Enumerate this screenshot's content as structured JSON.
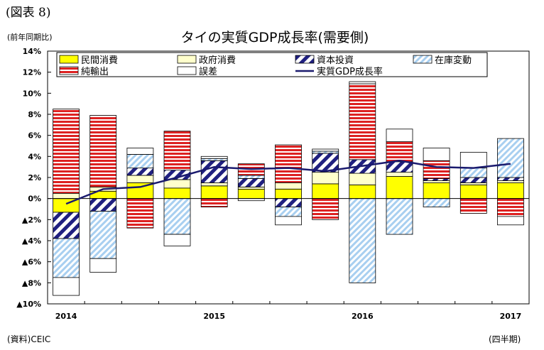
{
  "figure_label": "(図表 8)",
  "unit_label": "(前年同期比)",
  "source": "(資料)CEIC",
  "period_unit": "(四半期)",
  "chart_data": {
    "type": "bar",
    "stacked": true,
    "title": "タイの実質GDP成長率(需要側)",
    "categories": [
      "2014Q1",
      "2014Q2",
      "2014Q3",
      "2014Q4",
      "2015Q1",
      "2015Q2",
      "2015Q3",
      "2015Q4",
      "2016Q1",
      "2016Q2",
      "2016Q3",
      "2016Q4",
      "2017Q1"
    ],
    "x_tick_labels": [
      {
        "category": "2014Q1",
        "label": "2014"
      },
      {
        "category": "2015Q1",
        "label": "2015"
      },
      {
        "category": "2016Q1",
        "label": "2016"
      },
      {
        "category": "2017Q1",
        "label": "2017"
      }
    ],
    "y_ticks": [
      {
        "value": 14,
        "label": "14%"
      },
      {
        "value": 12,
        "label": "12%"
      },
      {
        "value": 10,
        "label": "10%"
      },
      {
        "value": 8,
        "label": "8%"
      },
      {
        "value": 6,
        "label": "6%"
      },
      {
        "value": 4,
        "label": "4%"
      },
      {
        "value": 2,
        "label": "2%"
      },
      {
        "value": 0,
        "label": "0%"
      },
      {
        "value": -2,
        "label": "▲2%"
      },
      {
        "value": -4,
        "label": "▲4%"
      },
      {
        "value": -6,
        "label": "▲6%"
      },
      {
        "value": -8,
        "label": "▲8%"
      },
      {
        "value": -10,
        "label": "▲10%"
      }
    ],
    "ylim": [
      -10,
      14
    ],
    "grid": false,
    "legend_position": "top",
    "series": [
      {
        "name": "民間消費",
        "pattern": "yellow-solid",
        "values": [
          -1.3,
          0.7,
          1.5,
          1.0,
          1.2,
          0.9,
          0.9,
          1.4,
          1.3,
          2.1,
          1.5,
          1.3,
          1.5
        ]
      },
      {
        "name": "政府消費",
        "pattern": "cream-solid",
        "values": [
          0.5,
          0.4,
          0.7,
          0.8,
          0.3,
          0.2,
          0.6,
          1.1,
          1.1,
          0.4,
          0.2,
          0.2,
          0.2
        ]
      },
      {
        "name": "資本投資",
        "pattern": "blue-white-diagonal",
        "values": [
          -2.5,
          -1.2,
          0.7,
          0.9,
          2.1,
          0.8,
          -0.8,
          1.8,
          1.3,
          1.0,
          0.2,
          0.5,
          0.3
        ]
      },
      {
        "name": "在庫変動",
        "pattern": "lightblue-diagonal",
        "values": [
          -3.7,
          -4.5,
          1.3,
          -3.4,
          0.2,
          0.3,
          -0.9,
          0.2,
          -8.0,
          -3.4,
          -0.8,
          0.9,
          3.7
        ]
      },
      {
        "name": "純輸出",
        "pattern": "red-white-horizontal",
        "values": [
          8.0,
          6.8,
          -2.8,
          3.7,
          -0.8,
          1.1,
          3.6,
          -2.0,
          7.2,
          1.9,
          1.7,
          -1.4,
          -1.7
        ]
      },
      {
        "name": "誤差",
        "pattern": "white",
        "values": [
          -1.7,
          -1.3,
          0.6,
          -1.1,
          0.2,
          -0.2,
          -0.8,
          0.2,
          0.2,
          1.2,
          1.2,
          1.5,
          -0.8
        ]
      }
    ],
    "line": {
      "name": "実質GDP成長率",
      "color": "#1a1a6e",
      "values": [
        -0.5,
        0.9,
        1.1,
        2.0,
        3.0,
        2.8,
        2.9,
        2.6,
        3.1,
        3.6,
        3.0,
        2.9,
        3.3
      ]
    },
    "colors": {
      "yellow": "#ffff00",
      "cream": "#ffffcc",
      "navy": "#202080",
      "lightblue": "#a8cff0",
      "red": "#dd2222",
      "line": "#1a1a6e"
    }
  }
}
